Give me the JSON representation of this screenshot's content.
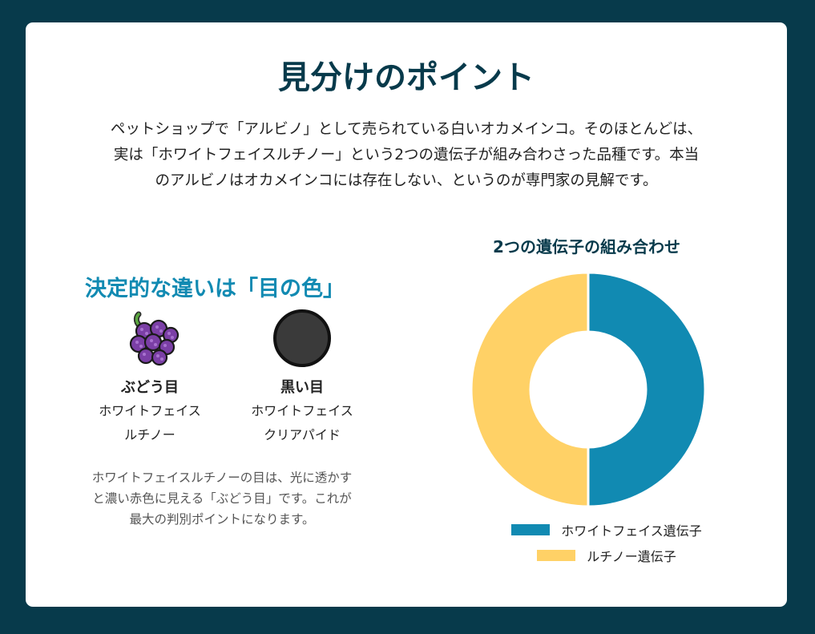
{
  "title": "見分けのポイント",
  "intro": {
    "line1": "ペットショップで「アルビノ」として売られている白いオカメインコ。そのほとんどは、",
    "line2": "実は「ホワイトフェイスルチノー」という2つの遺伝子が組み合わさった品種です。本当",
    "line3": "のアルビノはオカメインコには存在しない、というのが専門家の見解です。"
  },
  "eye_section": {
    "title": "決定的な違いは「目の色」",
    "items": [
      {
        "icon": "grape-icon",
        "name": "ぶどう目",
        "desc1": "ホワイトフェイス",
        "desc2": "ルチノー"
      },
      {
        "icon": "black-circle-icon",
        "name": "黒い目",
        "desc1": "ホワイトフェイス",
        "desc2": "クリアパイド"
      }
    ],
    "note": {
      "line1": "ホワイトフェイスルチノーの目は、光に透かす",
      "line2": "と濃い赤色に見える「ぶどう目」です。これが",
      "line3": "最大の判別ポイントになります。"
    }
  },
  "chart_data": {
    "type": "pie",
    "donut": true,
    "title": "2つの遺伝子の組み合わせ",
    "categories": [
      "ホワイトフェイス遺伝子",
      "ルチノー遺伝子"
    ],
    "values": [
      50,
      50
    ],
    "colors": [
      "#118ab2",
      "#ffd166"
    ],
    "legend": "bottom"
  }
}
